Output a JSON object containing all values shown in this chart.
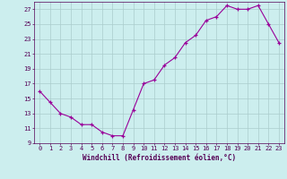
{
  "x": [
    0,
    1,
    2,
    3,
    4,
    5,
    6,
    7,
    8,
    9,
    10,
    11,
    12,
    13,
    14,
    15,
    16,
    17,
    18,
    19,
    20,
    21,
    22,
    23
  ],
  "y": [
    16.0,
    14.5,
    13.0,
    12.5,
    11.5,
    11.5,
    10.5,
    10.0,
    10.0,
    13.5,
    17.0,
    17.5,
    19.5,
    20.5,
    22.5,
    23.5,
    25.5,
    26.0,
    27.5,
    27.0,
    27.0,
    27.5,
    25.0,
    22.5
  ],
  "xlabel": "Windchill (Refroidissement éolien,°C)",
  "ylim": [
    9,
    28
  ],
  "xlim": [
    -0.5,
    23.5
  ],
  "yticks": [
    9,
    11,
    13,
    15,
    17,
    19,
    21,
    23,
    25,
    27
  ],
  "xticks": [
    0,
    1,
    2,
    3,
    4,
    5,
    6,
    7,
    8,
    9,
    10,
    11,
    12,
    13,
    14,
    15,
    16,
    17,
    18,
    19,
    20,
    21,
    22,
    23
  ],
  "line_color": "#990099",
  "marker_color": "#990099",
  "bg_color": "#cceeee",
  "grid_color": "#aacccc",
  "text_color": "#550055"
}
